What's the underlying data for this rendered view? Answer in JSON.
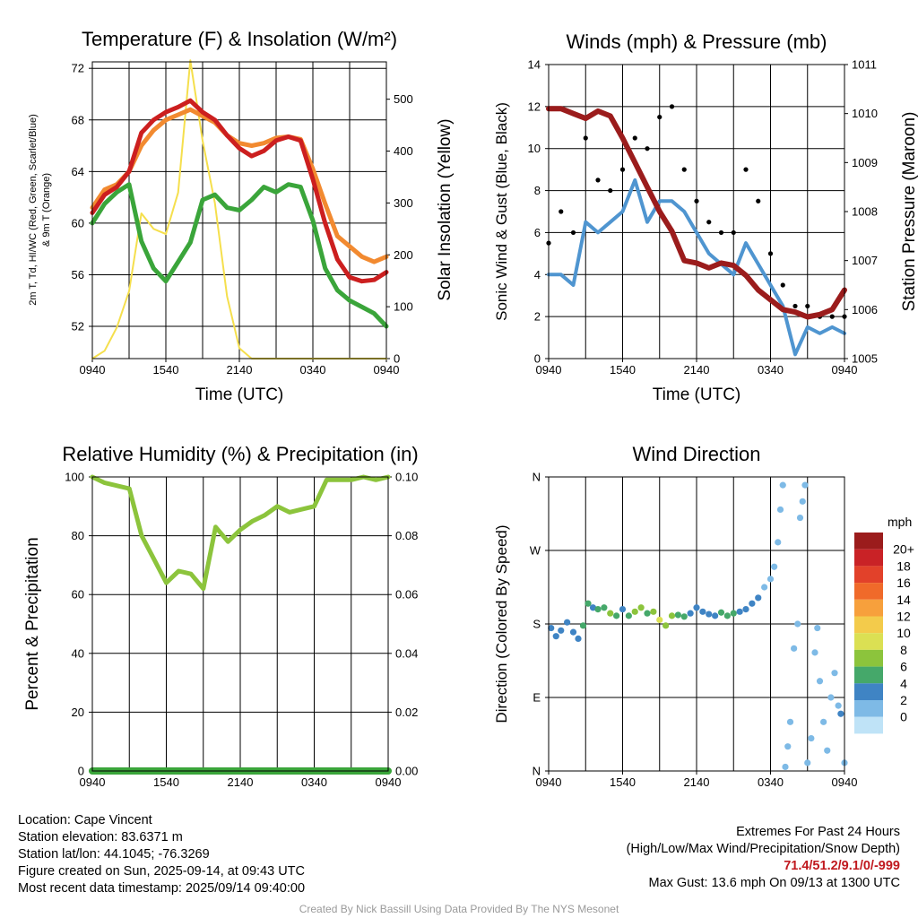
{
  "colors": {
    "red_temp": "#cc1f1f",
    "orange_temp": "#f28a30",
    "green_temp": "#3aa53a",
    "insolation": "#f5df4d",
    "wind": "#4f95d0",
    "gust": "#000000",
    "pressure": "#9b1c1c",
    "rh": "#8cc43c",
    "precip": "#3aa53a"
  },
  "panels": {
    "temperature": {
      "title": "Temperature (F) & Insolation (W/m²)",
      "ylabel_left_line1": "2m T, Td, HI/WC (Red, Green, Scarlet/Blue)",
      "ylabel_left_line2": "& 9m T (Orange)",
      "ylabel_right": "Solar Insolation (Yellow)",
      "xlabel": "Time (UTC)"
    },
    "winds": {
      "title": "Winds (mph) & Pressure (mb)",
      "ylabel_left": "Sonic Wind & Gust (Blue, Black)",
      "ylabel_right": "Station Pressure (Maroon)",
      "xlabel": "Time (UTC)"
    },
    "humidity": {
      "title": "Relative Humidity (%) & Precipitation (in)",
      "ylabel_left": "Percent & Precipitation"
    },
    "direction": {
      "title": "Wind Direction",
      "ylabel_left": "Direction (Colored By Speed)",
      "legend_title": "mph"
    }
  },
  "chart_data": [
    {
      "type": "line",
      "title": "Temperature (F) & Insolation (W/m²)",
      "xlabel": "Time (UTC)",
      "ylabel": "2m T, Td, HI/WC (Red, Green, Scarlet/Blue) & 9m T (Orange)",
      "y2label": "Solar Insolation (Yellow)",
      "x_ticks": [
        "0940",
        "1540",
        "2140",
        "0340",
        "0940"
      ],
      "xlim_hours": [
        0,
        24
      ],
      "ylim": [
        49.5,
        72.5
      ],
      "y_ticks": [
        52,
        56,
        60,
        64,
        68,
        72
      ],
      "y2lim": [
        0,
        572
      ],
      "y2_ticks": [
        0,
        100,
        200,
        300,
        400,
        500
      ],
      "x": [
        0,
        1,
        2,
        3,
        4,
        5,
        6,
        7,
        8,
        9,
        10,
        11,
        12,
        13,
        14,
        15,
        16,
        17,
        18,
        19,
        20,
        21,
        22,
        23,
        24
      ],
      "series": [
        {
          "name": "2m T (Red)",
          "axis": "left",
          "color": "#cc1f1f",
          "values": [
            60.8,
            62.2,
            62.8,
            64.0,
            67.0,
            68.0,
            68.6,
            69.0,
            69.5,
            68.6,
            68.0,
            66.8,
            65.8,
            65.2,
            65.6,
            66.4,
            66.7,
            66.4,
            63.4,
            60.0,
            57.2,
            55.8,
            55.5,
            55.6,
            56.2
          ]
        },
        {
          "name": "9m T (Orange)",
          "axis": "left",
          "color": "#f28a30",
          "values": [
            61.2,
            62.6,
            63.0,
            64.0,
            66.0,
            67.2,
            68.0,
            68.4,
            68.8,
            68.3,
            67.8,
            66.8,
            66.2,
            66.0,
            66.2,
            66.6,
            66.7,
            66.5,
            64.2,
            61.5,
            59.0,
            58.2,
            57.4,
            57.0,
            57.4
          ]
        },
        {
          "name": "2m Td (Green)",
          "axis": "left",
          "color": "#3aa53a",
          "values": [
            60.0,
            61.5,
            62.4,
            63.0,
            58.6,
            56.5,
            55.5,
            57.0,
            58.5,
            61.8,
            62.2,
            61.2,
            61.0,
            61.8,
            62.8,
            62.4,
            63.0,
            62.8,
            60.2,
            56.5,
            54.8,
            54.0,
            53.5,
            53.0,
            52.0
          ]
        },
        {
          "name": "Solar Insolation (Yellow)",
          "axis": "right",
          "color": "#f5df4d",
          "values": [
            0,
            15,
            60,
            130,
            280,
            250,
            240,
            320,
            575,
            420,
            300,
            120,
            20,
            0,
            0,
            0,
            0,
            0,
            0,
            0,
            0,
            0,
            0,
            0,
            0
          ]
        }
      ]
    },
    {
      "type": "line",
      "title": "Winds (mph) & Pressure (mb)",
      "xlabel": "Time (UTC)",
      "ylabel": "Sonic Wind & Gust (Blue, Black)",
      "y2label": "Station Pressure (Maroon)",
      "x_ticks": [
        "0940",
        "1540",
        "2140",
        "0340",
        "0940"
      ],
      "xlim_hours": [
        0,
        24
      ],
      "ylim": [
        0,
        14
      ],
      "y_ticks": [
        0,
        2,
        4,
        6,
        8,
        10,
        12,
        14
      ],
      "y2lim": [
        1005,
        1011
      ],
      "y2_ticks": [
        1005,
        1006,
        1007,
        1008,
        1009,
        1010,
        1011
      ],
      "x": [
        0,
        1,
        2,
        3,
        4,
        5,
        6,
        7,
        8,
        9,
        10,
        11,
        12,
        13,
        14,
        15,
        16,
        17,
        18,
        19,
        20,
        21,
        22,
        23,
        24
      ],
      "series": [
        {
          "name": "Sonic Wind (Blue)",
          "axis": "left",
          "color": "#4f95d0",
          "values": [
            4.0,
            4.0,
            3.5,
            6.5,
            6.0,
            6.5,
            7.0,
            8.5,
            6.5,
            7.5,
            7.5,
            7.0,
            6.0,
            5.0,
            4.5,
            4.0,
            5.5,
            4.5,
            3.5,
            2.5,
            0.2,
            1.5,
            1.2,
            1.5,
            1.2
          ]
        },
        {
          "name": "Gust (Black)",
          "axis": "left",
          "color": "#000000",
          "style": "markers",
          "values": [
            5.5,
            7.0,
            6.0,
            10.5,
            8.5,
            8.0,
            9.0,
            10.5,
            10.0,
            11.5,
            12.0,
            9.0,
            7.5,
            6.5,
            6.0,
            6.0,
            9.0,
            7.5,
            5.0,
            3.5,
            2.5,
            2.5,
            2.0,
            2.0,
            2.0
          ]
        },
        {
          "name": "Station Pressure (Maroon)",
          "axis": "right",
          "color": "#9b1c1c",
          "values": [
            1010.1,
            1010.1,
            1010.0,
            1009.9,
            1010.05,
            1009.95,
            1009.5,
            1009.0,
            1008.5,
            1008.0,
            1007.6,
            1007.0,
            1006.95,
            1006.85,
            1006.95,
            1006.9,
            1006.7,
            1006.4,
            1006.2,
            1006.0,
            1005.95,
            1005.85,
            1005.9,
            1006.0,
            1006.4
          ]
        }
      ]
    },
    {
      "type": "line",
      "title": "Relative Humidity (%) & Precipitation (in)",
      "ylabel": "Percent & Precipitation",
      "x_ticks": [
        "0940",
        "1540",
        "2140",
        "0340",
        "0940"
      ],
      "xlim_hours": [
        0,
        24
      ],
      "ylim": [
        0,
        100
      ],
      "y_ticks": [
        0,
        20,
        40,
        60,
        80,
        100
      ],
      "y2lim": [
        0,
        0.1
      ],
      "y2_ticks": [
        "0.00",
        "0.02",
        "0.04",
        "0.06",
        "0.08",
        "0.10"
      ],
      "x": [
        0,
        1,
        2,
        3,
        4,
        5,
        6,
        7,
        8,
        9,
        10,
        11,
        12,
        13,
        14,
        15,
        16,
        17,
        18,
        19,
        20,
        21,
        22,
        23,
        24
      ],
      "series": [
        {
          "name": "Relative Humidity",
          "axis": "left",
          "color": "#8cc43c",
          "values": [
            100,
            98,
            97,
            96,
            80,
            72,
            64,
            68,
            67,
            62,
            83,
            78,
            82,
            85,
            87,
            90,
            88,
            89,
            90,
            99,
            99,
            99,
            100,
            99,
            100
          ]
        },
        {
          "name": "Precipitation",
          "axis": "right",
          "color": "#3aa53a",
          "values": [
            0,
            0,
            0,
            0,
            0,
            0,
            0,
            0,
            0,
            0,
            0,
            0,
            0,
            0,
            0,
            0,
            0,
            0,
            0,
            0,
            0,
            0,
            0,
            0,
            0
          ]
        }
      ]
    },
    {
      "type": "scatter",
      "title": "Wind Direction",
      "ylabel": "Direction (Colored By Speed)",
      "x_ticks": [
        "0940",
        "1540",
        "2140",
        "0340",
        "0940"
      ],
      "xlim_hours": [
        0,
        24
      ],
      "y_tick_labels": [
        "N",
        "E",
        "S",
        "W",
        "N"
      ],
      "ylim_deg": [
        0,
        360
      ],
      "points": [
        {
          "x": 0.2,
          "y": 175,
          "mph": 4
        },
        {
          "x": 0.6,
          "y": 165,
          "mph": 4
        },
        {
          "x": 1.0,
          "y": 172,
          "mph": 3
        },
        {
          "x": 1.5,
          "y": 182,
          "mph": 4
        },
        {
          "x": 2.0,
          "y": 170,
          "mph": 4
        },
        {
          "x": 2.4,
          "y": 162,
          "mph": 3
        },
        {
          "x": 2.8,
          "y": 178,
          "mph": 6
        },
        {
          "x": 3.2,
          "y": 205,
          "mph": 6
        },
        {
          "x": 3.6,
          "y": 200,
          "mph": 4
        },
        {
          "x": 4.0,
          "y": 198,
          "mph": 6
        },
        {
          "x": 4.5,
          "y": 200,
          "mph": 6
        },
        {
          "x": 5.0,
          "y": 193,
          "mph": 7
        },
        {
          "x": 5.5,
          "y": 190,
          "mph": 6
        },
        {
          "x": 6.0,
          "y": 198,
          "mph": 4
        },
        {
          "x": 6.5,
          "y": 190,
          "mph": 6
        },
        {
          "x": 7.0,
          "y": 195,
          "mph": 8
        },
        {
          "x": 7.5,
          "y": 200,
          "mph": 8
        },
        {
          "x": 8.0,
          "y": 193,
          "mph": 6
        },
        {
          "x": 8.5,
          "y": 195,
          "mph": 8
        },
        {
          "x": 9.0,
          "y": 185,
          "mph": 9
        },
        {
          "x": 9.5,
          "y": 178,
          "mph": 8
        },
        {
          "x": 10.0,
          "y": 190,
          "mph": 7
        },
        {
          "x": 10.5,
          "y": 191,
          "mph": 6
        },
        {
          "x": 11.0,
          "y": 189,
          "mph": 5
        },
        {
          "x": 11.5,
          "y": 193,
          "mph": 4
        },
        {
          "x": 12.0,
          "y": 200,
          "mph": 4
        },
        {
          "x": 12.5,
          "y": 195,
          "mph": 4
        },
        {
          "x": 13.0,
          "y": 192,
          "mph": 4
        },
        {
          "x": 13.5,
          "y": 190,
          "mph": 4
        },
        {
          "x": 14.0,
          "y": 194,
          "mph": 6
        },
        {
          "x": 14.5,
          "y": 190,
          "mph": 6
        },
        {
          "x": 15.0,
          "y": 193,
          "mph": 5
        },
        {
          "x": 15.5,
          "y": 195,
          "mph": 4
        },
        {
          "x": 16.0,
          "y": 198,
          "mph": 4
        },
        {
          "x": 16.5,
          "y": 205,
          "mph": 4
        },
        {
          "x": 17.0,
          "y": 212,
          "mph": 3
        },
        {
          "x": 17.5,
          "y": 225,
          "mph": 2
        },
        {
          "x": 18.0,
          "y": 235,
          "mph": 2
        },
        {
          "x": 18.3,
          "y": 250,
          "mph": 1
        },
        {
          "x": 18.6,
          "y": 280,
          "mph": 1
        },
        {
          "x": 18.8,
          "y": 320,
          "mph": 1
        },
        {
          "x": 19.0,
          "y": 350,
          "mph": 1
        },
        {
          "x": 19.2,
          "y": 5,
          "mph": 1
        },
        {
          "x": 19.4,
          "y": 30,
          "mph": 1
        },
        {
          "x": 19.6,
          "y": 60,
          "mph": 1
        },
        {
          "x": 19.9,
          "y": 150,
          "mph": 1
        },
        {
          "x": 20.2,
          "y": 180,
          "mph": 1
        },
        {
          "x": 20.4,
          "y": 310,
          "mph": 1
        },
        {
          "x": 20.6,
          "y": 330,
          "mph": 2
        },
        {
          "x": 20.8,
          "y": 350,
          "mph": 2
        },
        {
          "x": 21.0,
          "y": 10,
          "mph": 1
        },
        {
          "x": 21.3,
          "y": 40,
          "mph": 1
        },
        {
          "x": 21.6,
          "y": 145,
          "mph": 1
        },
        {
          "x": 21.8,
          "y": 175,
          "mph": 1
        },
        {
          "x": 22.0,
          "y": 110,
          "mph": 1
        },
        {
          "x": 22.3,
          "y": 60,
          "mph": 1
        },
        {
          "x": 22.6,
          "y": 25,
          "mph": 1
        },
        {
          "x": 22.9,
          "y": 90,
          "mph": 2
        },
        {
          "x": 23.2,
          "y": 120,
          "mph": 1
        },
        {
          "x": 23.5,
          "y": 80,
          "mph": 2
        },
        {
          "x": 23.7,
          "y": 70,
          "mph": 3
        },
        {
          "x": 24.0,
          "y": 10,
          "mph": 1
        }
      ],
      "legend": {
        "title": "mph",
        "labels": [
          "20+",
          "18",
          "16",
          "14",
          "12",
          "10",
          "8",
          "6",
          "4",
          "2",
          "0"
        ],
        "colors": [
          "#9b1c1c",
          "#c92226",
          "#e2412a",
          "#f06a2a",
          "#f7a03c",
          "#f3cb4b",
          "#dbe053",
          "#8cc43c",
          "#45a86a",
          "#3f84c4",
          "#7ebae6",
          "#bfe3f7"
        ]
      }
    }
  ],
  "info_left": {
    "location": "Location: Cape Vincent",
    "elevation": "Station elevation: 83.6371 m",
    "latlon": "Station lat/lon: 44.1045; -76.3269",
    "created": "Figure created on Sun, 2025-09-14, at 09:43 UTC",
    "recent": "Most recent data timestamp: 2025/09/14 09:40:00"
  },
  "info_right": {
    "extremes_title": "Extremes For Past 24 Hours",
    "extremes_subtitle": "(High/Low/Max Wind/Precipitation/Snow Depth)",
    "extremes_values": "71.4/51.2/9.1/0/-999",
    "max_gust": "Max Gust: 13.6 mph On 09/13 at 1300 UTC"
  },
  "credit": "Created By Nick Bassill Using Data Provided By The NYS Mesonet"
}
